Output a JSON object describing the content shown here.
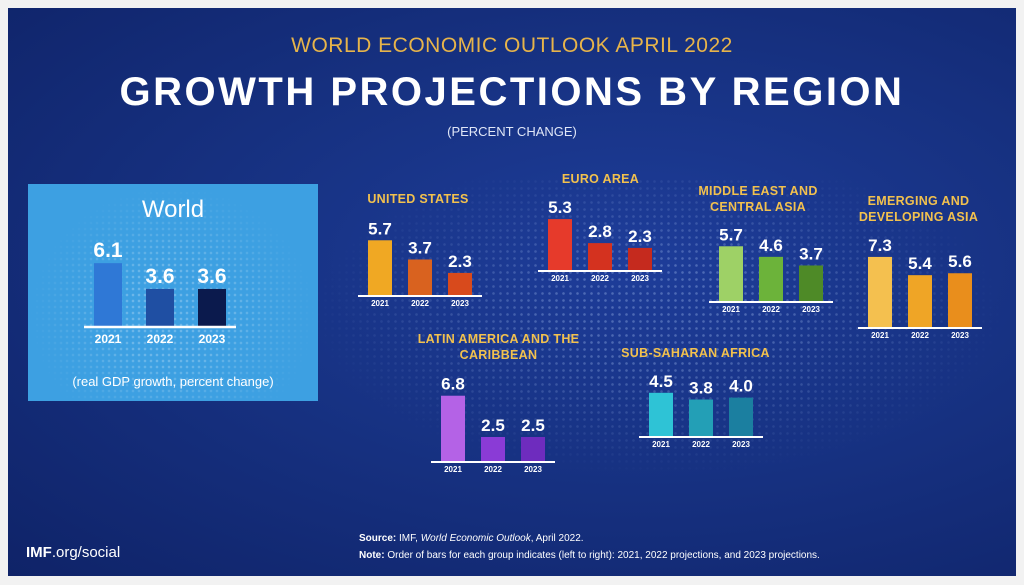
{
  "header": {
    "subtitle": "WORLD ECONOMIC OUTLOOK APRIL 2022",
    "title": "GROWTH PROJECTIONS BY REGION",
    "unit": "(PERCENT CHANGE)"
  },
  "world_panel": {
    "title": "World",
    "footnote": "(real GDP growth, percent change)"
  },
  "chart_data": {
    "type": "bar",
    "title": "GROWTH PROJECTIONS BY REGION",
    "ylabel": "percent change",
    "categories": [
      "2021",
      "2022",
      "2023"
    ],
    "series": [
      {
        "name": "World",
        "values": [
          6.1,
          3.6,
          3.6
        ],
        "colors": [
          "#2f78d6",
          "#1f4fa3",
          "#0b1a4d"
        ]
      },
      {
        "name": "UNITED STATES",
        "values": [
          5.7,
          3.7,
          2.3
        ],
        "colors": [
          "#f0a823",
          "#d9621f",
          "#d84a1c"
        ]
      },
      {
        "name": "EURO AREA",
        "values": [
          5.3,
          2.8,
          2.3
        ],
        "colors": [
          "#e63a2b",
          "#d4321f",
          "#c52a1e"
        ]
      },
      {
        "name": "MIDDLE EAST AND CENTRAL ASIA",
        "values": [
          5.7,
          4.6,
          3.7
        ],
        "colors": [
          "#9ed166",
          "#6cb33a",
          "#4e8a27"
        ]
      },
      {
        "name": "EMERGING AND DEVELOPING ASIA",
        "values": [
          7.3,
          5.4,
          5.6
        ],
        "colors": [
          "#f4c04f",
          "#efa526",
          "#e98e1c"
        ]
      },
      {
        "name": "LATIN AMERICA AND THE CARIBBEAN",
        "values": [
          6.8,
          2.5,
          2.5
        ],
        "colors": [
          "#b462e6",
          "#8a3bd6",
          "#6e2cbe"
        ]
      },
      {
        "name": "SUB-SAHARAN AFRICA",
        "values": [
          4.5,
          3.8,
          4.0
        ],
        "colors": [
          "#2ec3d6",
          "#239fb6",
          "#1b7fa0"
        ]
      }
    ]
  },
  "source": {
    "source_label": "Source:",
    "source_text_1": "IMF, ",
    "source_text_2": "World Economic Outlook",
    "source_text_3": ", April 2022.",
    "note_label": "Note:",
    "note_text": "Order of bars for each group indicates (left to right): 2021, 2022 projections, and 2023 projections."
  },
  "logo": {
    "brand": "IMF",
    "suffix": ".org/social"
  }
}
